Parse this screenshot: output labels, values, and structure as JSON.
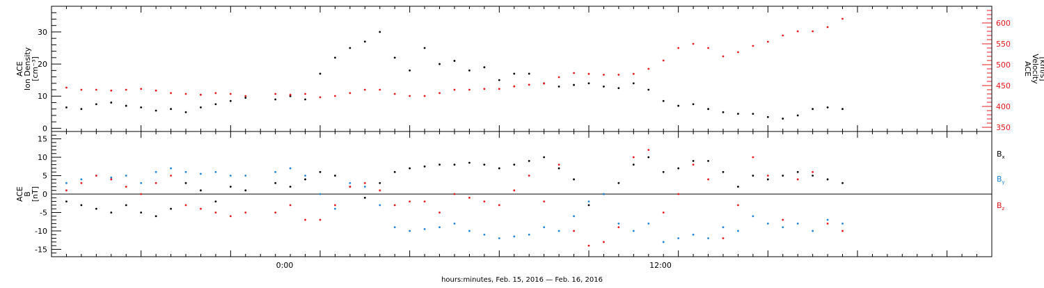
{
  "chart_data": [
    {
      "type": "scatter",
      "panel": "top",
      "left_axis": {
        "label_lines": [
          "ACE",
          "Ion Density",
          "[cm⁻³]"
        ],
        "range": [
          -1,
          38
        ],
        "ticks": [
          0,
          10,
          20,
          30
        ],
        "color": "#000000"
      },
      "right_axis": {
        "label_lines": [
          "ACE",
          "Velocity",
          "[km/s]"
        ],
        "range": [
          340,
          640
        ],
        "ticks": [
          350,
          400,
          450,
          500,
          550,
          600
        ],
        "color": "#e8171c"
      },
      "series": [
        {
          "axis": "left",
          "color": "#000000",
          "x": [
            -8.5,
            -8.0,
            -7.5,
            -7.0,
            -6.5,
            -6.0,
            -5.5,
            -5.0,
            -4.5,
            -4.0,
            -3.5,
            -3.0,
            -2.5,
            -2.0,
            -1.5,
            -1.0,
            -0.5,
            0.0,
            0.5,
            1.0,
            1.5,
            2.0,
            2.5,
            3.0,
            3.5,
            4.0,
            4.5,
            5.0,
            5.5,
            6.0,
            6.5,
            7.0,
            7.5,
            8.0,
            8.5,
            9.0,
            9.5,
            10.0,
            10.5,
            11.0,
            11.5,
            12.0,
            12.5,
            13.0,
            13.5,
            14.0,
            14.5,
            15.0,
            15.5,
            16.0,
            16.5,
            17.0,
            17.5
          ],
          "y": [
            6.5,
            6.0,
            7.5,
            8.0,
            7.0,
            6.5,
            5.5,
            6.0,
            5.0,
            6.5,
            7.5,
            8.5,
            9.5,
            null,
            9.0,
            10.0,
            9.0,
            17.0,
            22.0,
            25.0,
            27.0,
            30.0,
            22.0,
            18.0,
            25.0,
            20.0,
            21.0,
            18.0,
            19.0,
            15.0,
            17.0,
            17.0,
            14.0,
            13.0,
            13.5,
            14.0,
            13.0,
            12.5,
            14.0,
            12.0,
            8.5,
            7.0,
            7.5,
            6.0,
            5.0,
            4.5,
            4.5,
            3.5,
            3.0,
            4.0,
            6.0,
            6.5,
            6.0
          ]
        },
        {
          "axis": "right",
          "color": "#e8171c",
          "x": [
            -8.5,
            -8.0,
            -7.5,
            -7.0,
            -6.5,
            -6.0,
            -5.5,
            -5.0,
            -4.5,
            -4.0,
            -3.5,
            -3.0,
            -2.5,
            -2.0,
            -1.5,
            -1.0,
            -0.5,
            0.0,
            0.5,
            1.0,
            1.5,
            2.0,
            2.5,
            3.0,
            3.5,
            4.0,
            4.5,
            5.0,
            5.5,
            6.0,
            6.5,
            7.0,
            7.5,
            8.0,
            8.5,
            9.0,
            9.5,
            10.0,
            10.5,
            11.0,
            11.5,
            12.0,
            12.5,
            13.0,
            13.5,
            14.0,
            14.5,
            15.0,
            15.5,
            16.0,
            16.5,
            17.0,
            17.5
          ],
          "y": [
            445,
            440,
            440,
            438,
            440,
            442,
            438,
            432,
            430,
            428,
            432,
            430,
            425,
            null,
            430,
            428,
            430,
            422,
            425,
            432,
            440,
            440,
            430,
            425,
            425,
            432,
            440,
            440,
            442,
            442,
            448,
            452,
            455,
            470,
            480,
            478,
            476,
            476,
            478,
            490,
            510,
            540,
            550,
            540,
            520,
            530,
            545,
            555,
            570,
            580,
            580,
            590,
            610
          ]
        }
      ]
    },
    {
      "type": "scatter",
      "panel": "bottom",
      "left_axis": {
        "label_lines": [
          "ACE",
          "B",
          "[nT]"
        ],
        "range": [
          -17,
          17
        ],
        "ticks": [
          -15,
          -10,
          -5,
          0,
          5,
          10,
          15
        ],
        "color": "#000000"
      },
      "legend": {
        "entries": [
          "B",
          "B",
          "B"
        ],
        "subscripts": [
          "x",
          "y",
          "z"
        ],
        "colors": [
          "#000000",
          "#1f83d6",
          "#e8171c"
        ],
        "placement": "right"
      },
      "zero_line": true,
      "series": [
        {
          "name": "Bx",
          "color": "#000000",
          "x": [
            -8.5,
            -8.0,
            -7.5,
            -7.0,
            -6.5,
            -6.0,
            -5.5,
            -5.0,
            -4.5,
            -4.0,
            -3.5,
            -3.0,
            -2.5,
            -2.0,
            -1.5,
            -1.0,
            -0.5,
            0.0,
            0.5,
            1.0,
            1.5,
            2.0,
            2.5,
            3.0,
            3.5,
            4.0,
            4.5,
            5.0,
            5.5,
            6.0,
            6.5,
            7.0,
            7.5,
            8.0,
            8.5,
            9.0,
            9.5,
            10.0,
            10.5,
            11.0,
            11.5,
            12.0,
            12.5,
            13.0,
            13.5,
            14.0,
            14.5,
            15.0,
            15.5,
            16.0,
            16.5,
            17.0,
            17.5
          ],
          "y": [
            -2,
            -3,
            -4,
            -5,
            -3,
            -5,
            -6,
            -4,
            3,
            1,
            -2,
            2,
            1,
            null,
            3,
            2,
            4,
            6,
            5,
            2,
            -1,
            3,
            6,
            7,
            7.5,
            8,
            8,
            8.5,
            8,
            7,
            8,
            9,
            10,
            7,
            4,
            -3,
            0,
            3,
            8,
            10,
            6,
            7,
            9,
            9,
            6,
            2,
            5,
            4,
            5,
            6,
            5,
            4,
            3
          ]
        },
        {
          "name": "By",
          "color": "#1f83d6",
          "x": [
            -8.5,
            -8.0,
            -7.5,
            -7.0,
            -6.5,
            -6.0,
            -5.5,
            -5.0,
            -4.5,
            -4.0,
            -3.5,
            -3.0,
            -2.5,
            -2.0,
            -1.5,
            -1.0,
            -0.5,
            0.0,
            0.5,
            1.0,
            1.5,
            2.0,
            2.5,
            3.0,
            3.5,
            4.0,
            4.5,
            5.0,
            5.5,
            6.0,
            6.5,
            7.0,
            7.5,
            8.0,
            8.5,
            9.0,
            9.5,
            10.0,
            10.5,
            11.0,
            11.5,
            12.0,
            12.5,
            13.0,
            13.5,
            14.0,
            14.5,
            15.0,
            15.5,
            16.0,
            16.5,
            17.0,
            17.5
          ],
          "y": [
            3,
            4,
            5,
            4.5,
            5,
            3,
            6,
            7,
            6,
            5.5,
            6,
            5,
            5,
            null,
            6,
            7,
            5,
            0,
            -4,
            3,
            2,
            -3,
            -9,
            -10,
            -9.5,
            -9,
            -8,
            -10,
            -11,
            -12,
            -11.5,
            -11,
            -9,
            -10,
            -6,
            -2,
            0,
            -8,
            -10,
            -8,
            -13,
            -12,
            -11,
            -12,
            -9,
            -10,
            -6,
            -8,
            -9,
            -8,
            -10,
            -7,
            -8
          ]
        },
        {
          "name": "Bz",
          "color": "#e8171c",
          "x": [
            -8.5,
            -8.0,
            -7.5,
            -7.0,
            -6.5,
            -6.0,
            -5.5,
            -5.0,
            -4.5,
            -4.0,
            -3.5,
            -3.0,
            -2.5,
            -2.0,
            -1.5,
            -1.0,
            -0.5,
            0.0,
            0.5,
            1.0,
            1.5,
            2.0,
            2.5,
            3.0,
            3.5,
            4.0,
            4.5,
            5.0,
            5.5,
            6.0,
            6.5,
            7.0,
            7.5,
            8.0,
            8.5,
            9.0,
            9.5,
            10.0,
            10.5,
            11.0,
            11.5,
            12.0,
            12.5,
            13.0,
            13.5,
            14.0,
            14.5,
            15.0,
            15.5,
            16.0,
            16.5,
            17.0,
            17.5
          ],
          "y": [
            1,
            3,
            5,
            4,
            2,
            0,
            3,
            5,
            -3,
            -4,
            -5,
            -6,
            -5,
            null,
            -5,
            -3,
            -7,
            -7,
            -3,
            2,
            3,
            1,
            -3,
            -2,
            -2,
            -5,
            0,
            -1,
            -2,
            -3,
            1,
            5,
            -2,
            8,
            -10,
            -14,
            -13,
            -9,
            10,
            12,
            -5,
            0,
            8,
            4,
            -12,
            -3,
            10,
            5,
            -7,
            4,
            6,
            -8,
            -10
          ]
        }
      ]
    }
  ],
  "x_axis": {
    "range": [
      -9,
      22.5
    ],
    "tick_labels": [
      "0:00",
      "12:00"
    ],
    "label": "hours:minutes, Feb. 15, 2016 — Feb. 16, 2016"
  }
}
